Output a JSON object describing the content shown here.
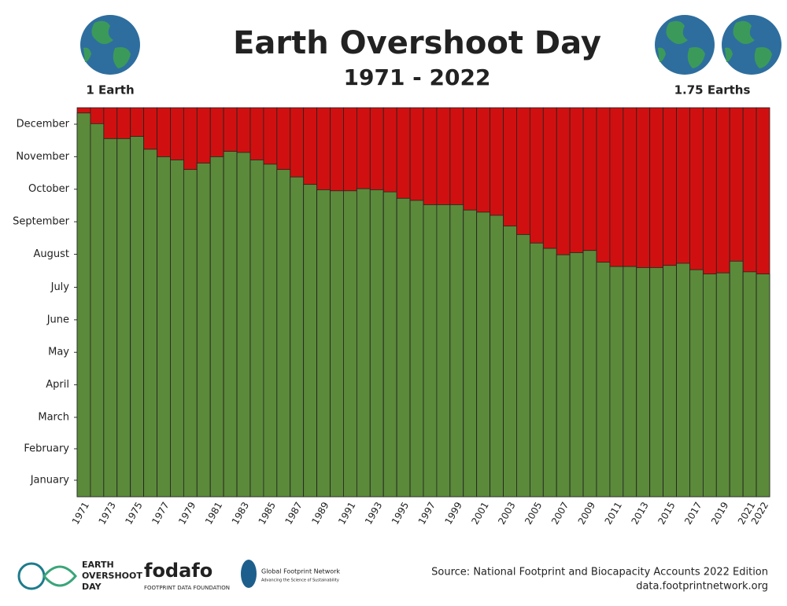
{
  "chart_data": {
    "type": "bar",
    "title": "Earth Overshoot Day",
    "subtitle": "1971 - 2022",
    "annotations": [
      "1 Earth",
      "1.75 Earths"
    ],
    "source": [
      "Source: National Footprint and Biocapacity Accounts 2022 Edition",
      "data.footprintnetwork.org"
    ],
    "logos": [
      "EARTH",
      "OVERSHOOT",
      "DAY",
      "fodafo",
      "FOOTPRINT DATA FOUNDATION",
      "Global Footprint Network",
      "Advancing the Science of Sustainability"
    ],
    "categories": [
      "1971",
      null,
      "1973",
      null,
      "1975",
      null,
      "1977",
      null,
      "1979",
      null,
      "1981",
      null,
      "1983",
      null,
      "1985",
      null,
      "1987",
      null,
      "1989",
      null,
      "1991",
      null,
      "1993",
      null,
      "1995",
      null,
      "1997",
      null,
      "1999",
      null,
      "2001",
      null,
      "2003",
      null,
      "2005",
      null,
      "2007",
      null,
      "2009",
      null,
      "2011",
      null,
      "2013",
      null,
      "2015",
      null,
      "2017",
      null,
      "2019",
      null,
      "2021",
      "2022"
    ],
    "values": [
      360,
      350,
      336,
      336,
      338,
      326,
      319,
      316,
      307,
      313,
      319,
      324,
      323,
      316,
      312,
      307,
      300,
      293,
      288,
      287,
      287,
      289,
      288,
      286,
      280,
      278,
      274,
      274,
      274,
      269,
      267,
      264,
      254,
      246,
      238,
      233,
      227,
      229,
      231,
      220,
      216,
      216,
      215,
      215,
      217,
      219,
      213,
      209,
      210,
      221,
      211,
      209
    ],
    "color": "#5b8a3a",
    "overshoot_color": "#d01010",
    "ylim": [
      0,
      365
    ],
    "yticks": [
      {
        "value": 15.5,
        "label": "January"
      },
      {
        "value": 45,
        "label": "February"
      },
      {
        "value": 74.5,
        "label": "March"
      },
      {
        "value": 105,
        "label": "April"
      },
      {
        "value": 135.5,
        "label": "May"
      },
      {
        "value": 166,
        "label": "June"
      },
      {
        "value": 196.5,
        "label": "July"
      },
      {
        "value": 227.5,
        "label": "August"
      },
      {
        "value": 258,
        "label": "September"
      },
      {
        "value": 288.5,
        "label": "October"
      },
      {
        "value": 319,
        "label": "November"
      },
      {
        "value": 349.5,
        "label": "December"
      }
    ]
  }
}
